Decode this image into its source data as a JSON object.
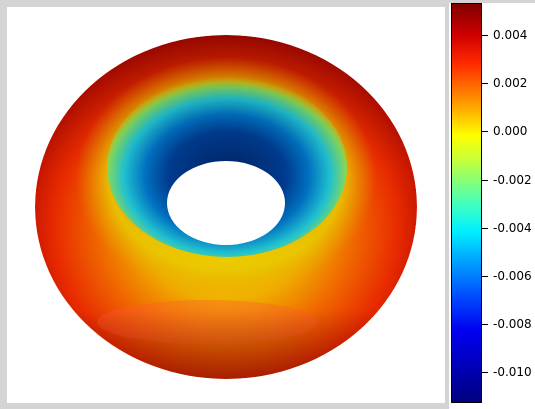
{
  "colorbar": {
    "ticks": [
      {
        "label": "0.004",
        "value": 0.004
      },
      {
        "label": "0.002",
        "value": 0.002
      },
      {
        "label": "0.000",
        "value": 0.0
      },
      {
        "label": "-0.002",
        "value": -0.002
      },
      {
        "label": "-0.004",
        "value": -0.004
      },
      {
        "label": "-0.006",
        "value": -0.006
      },
      {
        "label": "-0.008",
        "value": -0.008
      },
      {
        "label": "-0.010",
        "value": -0.01
      }
    ],
    "colormap": "jet"
  },
  "colors": {
    "background": "#d4d4d4",
    "viewport": "#ffffff"
  }
}
